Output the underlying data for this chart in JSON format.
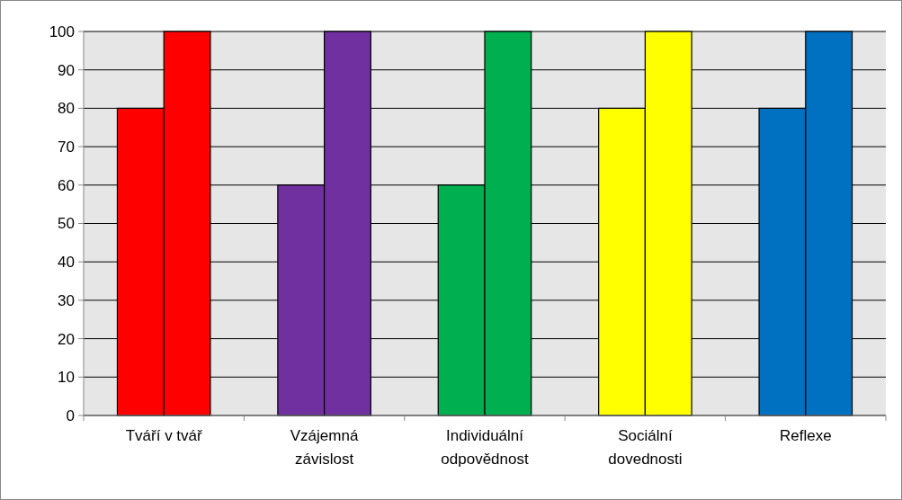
{
  "chart_data": {
    "type": "bar",
    "categories": [
      "Tváří v tvář",
      "Vzájemná závislost",
      "Individuální odpovědnost",
      "Sociální dovednosti",
      "Reflexe"
    ],
    "series": [
      {
        "colors": [
          "#ff0000",
          "#7030a0",
          "#00b050",
          "#ffff00",
          "#0070c0"
        ],
        "values": [
          80,
          60,
          60,
          80,
          80
        ]
      },
      {
        "colors": [
          "#ff0000",
          "#7030a0",
          "#00b050",
          "#ffff00",
          "#0070c0"
        ],
        "values": [
          100,
          100,
          100,
          100,
          100
        ]
      }
    ],
    "ylim": [
      0,
      100
    ],
    "yticks": [
      0,
      10,
      20,
      30,
      40,
      50,
      60,
      70,
      80,
      90,
      100
    ],
    "grid": "y"
  }
}
